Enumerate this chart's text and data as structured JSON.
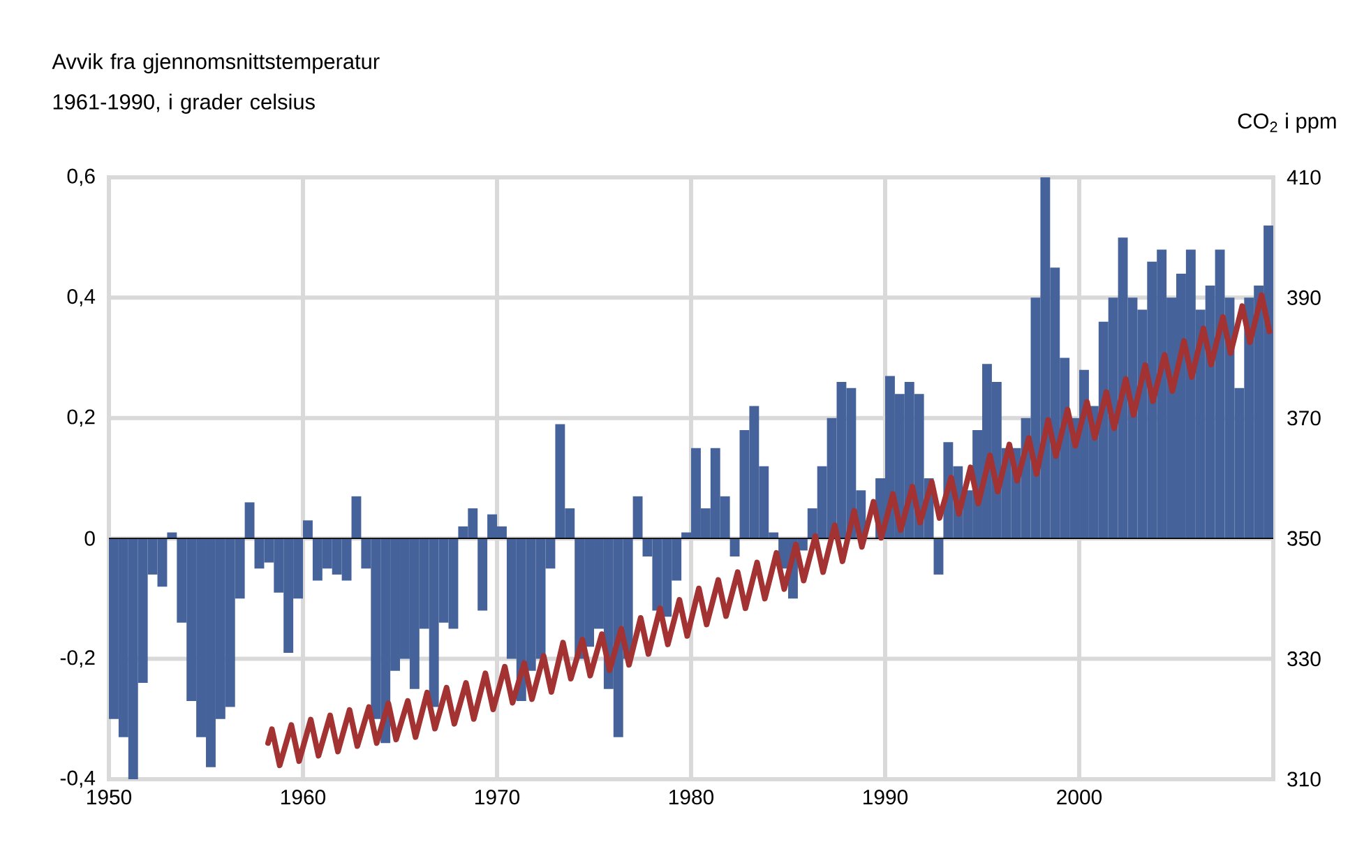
{
  "chart_data": {
    "type": "bar",
    "ylabel": "Avvik fra gjennomsnittstemperatur 1961-1990, i grader celsius",
    "y2label": "CO$_{2}$ i ppm",
    "xlim": [
      1950,
      2010
    ],
    "xticks": [
      1950,
      1960,
      1970,
      1980,
      1990,
      2000
    ],
    "ylim": [
      -0.4,
      0.6
    ],
    "yticks": [
      {
        "value": -0.4,
        "label": "-0,4"
      },
      {
        "value": -0.2,
        "label": "-0,2"
      },
      {
        "value": 0,
        "label": "0"
      },
      {
        "value": 0.2,
        "label": "0,2"
      },
      {
        "value": 0.4,
        "label": "0,4"
      },
      {
        "value": 0.6,
        "label": "0,6"
      }
    ],
    "y2lim": [
      310,
      410
    ],
    "y2ticks": [
      310,
      330,
      350,
      370,
      390,
      410
    ],
    "grid": true,
    "marker": "none",
    "series": [
      {
        "color": "#45639a",
        "x": [
          1950.25,
          1950.75,
          1951.25,
          1951.75,
          1952.25,
          1952.75,
          1953.25,
          1953.75,
          1954.25,
          1954.75,
          1955.25,
          1955.75,
          1956.25,
          1956.75,
          1957.25,
          1957.75,
          1958.25,
          1958.75,
          1959.25,
          1959.75,
          1960.25,
          1960.75,
          1961.25,
          1961.75,
          1962.25,
          1962.75,
          1963.25,
          1963.75,
          1964.25,
          1964.75,
          1965.25,
          1965.75,
          1966.25,
          1966.75,
          1967.25,
          1967.75,
          1968.25,
          1968.75,
          1969.25,
          1969.75,
          1970.25,
          1970.75,
          1971.25,
          1971.75,
          1972.25,
          1972.75,
          1973.25,
          1973.75,
          1974.25,
          1974.75,
          1975.25,
          1975.75,
          1976.25,
          1976.75,
          1977.25,
          1977.75,
          1978.25,
          1978.75,
          1979.25,
          1979.75,
          1980.25,
          1980.75,
          1981.25,
          1981.75,
          1982.25,
          1982.75,
          1983.25,
          1983.75,
          1984.25,
          1984.75,
          1985.25,
          1985.75,
          1986.25,
          1986.75,
          1987.25,
          1987.75,
          1988.25,
          1988.75,
          1989.25,
          1989.75,
          1990.25,
          1990.75,
          1991.25,
          1991.75,
          1992.25,
          1992.75,
          1993.25,
          1993.75,
          1994.25,
          1994.75,
          1995.25,
          1995.75,
          1996.25,
          1996.75,
          1997.25,
          1997.75,
          1998.25,
          1998.75,
          1999.25,
          1999.75,
          2000.25,
          2000.75,
          2001.25,
          2001.75,
          2002.25,
          2002.75,
          2003.25,
          2003.75,
          2004.25,
          2004.75,
          2005.25,
          2005.75,
          2006.25,
          2006.75,
          2007.25,
          2007.75,
          2008.25,
          2008.75,
          2009.25,
          2009.75
        ],
        "values": [
          -0.3,
          -0.33,
          -0.4,
          -0.24,
          -0.06,
          -0.08,
          0.01,
          -0.14,
          -0.27,
          -0.33,
          -0.38,
          -0.3,
          -0.28,
          -0.1,
          0.06,
          -0.05,
          -0.04,
          -0.09,
          -0.19,
          -0.1,
          0.03,
          -0.07,
          -0.05,
          -0.06,
          -0.07,
          0.07,
          -0.05,
          -0.3,
          -0.34,
          -0.22,
          -0.2,
          -0.25,
          -0.15,
          -0.28,
          -0.14,
          -0.15,
          0.02,
          0.05,
          -0.12,
          0.04,
          0.02,
          -0.2,
          -0.27,
          -0.22,
          -0.2,
          -0.05,
          0.19,
          0.05,
          -0.2,
          -0.18,
          -0.15,
          -0.25,
          -0.33,
          -0.2,
          0.07,
          -0.03,
          -0.12,
          -0.13,
          -0.07,
          0.01,
          0.15,
          0.05,
          0.15,
          0.07,
          -0.03,
          0.18,
          0.22,
          0.12,
          0.01,
          -0.05,
          -0.1,
          -0.02,
          0.05,
          0.12,
          0.2,
          0.26,
          0.25,
          0.08,
          null,
          0.1,
          0.27,
          0.24,
          0.26,
          0.24,
          0.1,
          -0.06,
          0.16,
          0.12,
          0.08,
          0.18,
          0.29,
          0.26,
          0.15,
          0.15,
          0.2,
          0.4,
          0.6,
          0.45,
          0.3,
          0.2,
          0.28,
          0.22,
          0.36,
          0.4,
          0.5,
          0.4,
          0.38,
          0.46,
          0.48,
          0.4,
          0.44,
          0.48,
          0.38,
          0.42,
          0.48,
          0.4,
          0.25,
          0.4,
          0.42,
          0.52
        ]
      },
      {
        "type": "line",
        "axis": "y2",
        "color": "#a33232",
        "line_style": "solid",
        "x": [
          1958.2,
          1958.4,
          1958.8,
          1959.4,
          1959.8,
          1960.4,
          1960.8,
          1961.4,
          1961.8,
          1962.4,
          1962.8,
          1963.4,
          1963.8,
          1964.4,
          1964.8,
          1965.4,
          1965.8,
          1966.4,
          1966.8,
          1967.4,
          1967.8,
          1968.4,
          1968.8,
          1969.4,
          1969.8,
          1970.4,
          1970.8,
          1971.4,
          1971.8,
          1972.4,
          1972.8,
          1973.4,
          1973.8,
          1974.4,
          1974.8,
          1975.4,
          1975.8,
          1976.4,
          1976.8,
          1977.4,
          1977.8,
          1978.4,
          1978.8,
          1979.4,
          1979.8,
          1980.4,
          1980.8,
          1981.4,
          1981.8,
          1982.4,
          1982.8,
          1983.4,
          1983.8,
          1984.4,
          1984.8,
          1985.4,
          1985.8,
          1986.4,
          1986.8,
          1987.4,
          1987.8,
          1988.4,
          1988.8,
          1989.4,
          1989.8,
          1990.4,
          1990.8,
          1991.4,
          1991.8,
          1992.4,
          1992.8,
          1993.4,
          1993.8,
          1994.4,
          1994.8,
          1995.4,
          1995.8,
          1996.4,
          1996.8,
          1997.4,
          1997.8,
          1998.4,
          1998.8,
          1999.4,
          1999.8,
          2000.4,
          2000.8,
          2001.4,
          2001.8,
          2002.4,
          2002.8,
          2003.4,
          2003.8,
          2004.4,
          2004.8,
          2005.4,
          2005.8,
          2006.4,
          2006.8,
          2007.4,
          2007.8,
          2008.4,
          2008.8,
          2009.4,
          2009.8
        ],
        "values": [
          316.0,
          318.3,
          312.3,
          319.0,
          313.0,
          319.9,
          313.9,
          320.6,
          314.6,
          321.5,
          315.5,
          322.0,
          316.0,
          322.6,
          316.6,
          323.0,
          317.0,
          324.4,
          318.4,
          325.2,
          319.2,
          326.0,
          320.0,
          327.6,
          321.6,
          328.7,
          322.7,
          329.3,
          323.3,
          330.5,
          324.5,
          332.7,
          326.7,
          333.2,
          327.2,
          334.1,
          328.1,
          335.0,
          329.0,
          336.8,
          330.8,
          338.4,
          332.4,
          339.8,
          333.8,
          341.7,
          335.7,
          343.1,
          337.1,
          344.4,
          338.4,
          346.0,
          340.0,
          347.6,
          341.6,
          349.0,
          343.0,
          350.4,
          344.4,
          352.2,
          346.2,
          354.6,
          348.6,
          356.1,
          350.1,
          357.4,
          351.4,
          358.6,
          352.6,
          359.4,
          353.4,
          360.1,
          354.1,
          361.8,
          355.8,
          363.8,
          357.8,
          365.6,
          359.6,
          366.7,
          360.7,
          369.7,
          363.7,
          371.4,
          365.4,
          372.7,
          366.7,
          374.3,
          368.3,
          376.5,
          370.5,
          378.8,
          372.8,
          380.5,
          374.5,
          382.8,
          376.8,
          384.9,
          378.9,
          386.8,
          380.8,
          388.6,
          382.6,
          390.4,
          384.4
        ]
      }
    ]
  }
}
